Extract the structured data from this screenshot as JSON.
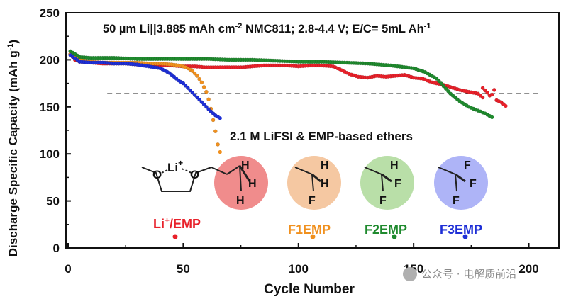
{
  "chart_data": {
    "type": "scatter",
    "title": "50 µm Li||3.885 mAh cm⁻² NMC811; 2.8-4.4 V; E/C= 5mL Ah⁻¹",
    "title_parts": {
      "pre": "50 µm Li||3.885 mAh cm",
      "sup1": "-2",
      "mid": " NMC811; 2.8-4.4 V; E/C= 5mL Ah",
      "sup2": "-1"
    },
    "xlabel": "Cycle Number",
    "ylabel_parts": {
      "pre": "Discharge Specific Capacity (mAh g",
      "sup": "-1",
      "post": ")"
    },
    "xlim": [
      0,
      210
    ],
    "ylim": [
      0,
      250
    ],
    "xticks": [
      0,
      50,
      100,
      150,
      200
    ],
    "yticks": [
      0,
      50,
      100,
      150,
      200,
      250
    ],
    "reference_line": {
      "y": 164,
      "x_start": 17,
      "x_end": 205,
      "style": "dashed"
    },
    "annotation": "2.1 M LiFSI & EMP-based ethers",
    "series": [
      {
        "name": "Li+/EMP",
        "color": "#e8212a",
        "points": [
          [
            1,
            206
          ],
          [
            3,
            200
          ],
          [
            5,
            198
          ],
          [
            10,
            197
          ],
          [
            15,
            196
          ],
          [
            20,
            196
          ],
          [
            25,
            196
          ],
          [
            30,
            195
          ],
          [
            35,
            195
          ],
          [
            40,
            194
          ],
          [
            45,
            194
          ],
          [
            50,
            193
          ],
          [
            55,
            193
          ],
          [
            60,
            192
          ],
          [
            65,
            192
          ],
          [
            70,
            192
          ],
          [
            75,
            192
          ],
          [
            80,
            193
          ],
          [
            85,
            194
          ],
          [
            90,
            194
          ],
          [
            95,
            194
          ],
          [
            100,
            193
          ],
          [
            105,
            194
          ],
          [
            110,
            194
          ],
          [
            115,
            193
          ],
          [
            118,
            190
          ],
          [
            122,
            185
          ],
          [
            126,
            182
          ],
          [
            130,
            181
          ],
          [
            134,
            183
          ],
          [
            138,
            182
          ],
          [
            142,
            183
          ],
          [
            146,
            184
          ],
          [
            150,
            181
          ],
          [
            154,
            180
          ],
          [
            158,
            176
          ],
          [
            162,
            174
          ],
          [
            166,
            171
          ],
          [
            170,
            168
          ],
          [
            174,
            166
          ],
          [
            178,
            164
          ],
          [
            180,
            160
          ],
          [
            182,
            165
          ],
          [
            184,
            163
          ],
          [
            186,
            157
          ],
          [
            188,
            155
          ],
          [
            190,
            151
          ],
          [
            180,
            170
          ],
          [
            183,
            162
          ],
          [
            185,
            168
          ]
        ]
      },
      {
        "name": "F1EMP",
        "color": "#f0901e",
        "points": [
          [
            1,
            206
          ],
          [
            5,
            200
          ],
          [
            10,
            198
          ],
          [
            15,
            197
          ],
          [
            20,
            197
          ],
          [
            25,
            197
          ],
          [
            30,
            197
          ],
          [
            35,
            196
          ],
          [
            40,
            196
          ],
          [
            45,
            195
          ],
          [
            48,
            194
          ],
          [
            50,
            193
          ],
          [
            52,
            191
          ],
          [
            54,
            188
          ],
          [
            56,
            183
          ],
          [
            58,
            176
          ],
          [
            60,
            166
          ],
          [
            61,
            158
          ],
          [
            62,
            148
          ],
          [
            63,
            136
          ],
          [
            64,
            124
          ],
          [
            65,
            110
          ],
          [
            66,
            102
          ]
        ]
      },
      {
        "name": "F2EMP",
        "color": "#1f8a2e",
        "points": [
          [
            1,
            209
          ],
          [
            5,
            203
          ],
          [
            10,
            202
          ],
          [
            20,
            202
          ],
          [
            30,
            201
          ],
          [
            40,
            201
          ],
          [
            50,
            201
          ],
          [
            60,
            201
          ],
          [
            70,
            200
          ],
          [
            80,
            200
          ],
          [
            90,
            199
          ],
          [
            100,
            198
          ],
          [
            110,
            198
          ],
          [
            120,
            197
          ],
          [
            130,
            196
          ],
          [
            140,
            194
          ],
          [
            150,
            191
          ],
          [
            155,
            187
          ],
          [
            160,
            180
          ],
          [
            163,
            172
          ],
          [
            166,
            164
          ],
          [
            170,
            156
          ],
          [
            174,
            150
          ],
          [
            178,
            146
          ],
          [
            181,
            143
          ],
          [
            184,
            139
          ]
        ]
      },
      {
        "name": "F3EMP",
        "color": "#1e2fd6",
        "points": [
          [
            1,
            205
          ],
          [
            5,
            198
          ],
          [
            10,
            197
          ],
          [
            15,
            197
          ],
          [
            20,
            196
          ],
          [
            25,
            196
          ],
          [
            30,
            195
          ],
          [
            35,
            193
          ],
          [
            40,
            191
          ],
          [
            44,
            186
          ],
          [
            46,
            182
          ],
          [
            48,
            178
          ],
          [
            50,
            175
          ],
          [
            52,
            170
          ],
          [
            54,
            165
          ],
          [
            56,
            160
          ],
          [
            58,
            155
          ],
          [
            60,
            150
          ],
          [
            62,
            145
          ],
          [
            64,
            141
          ],
          [
            66,
            138
          ]
        ]
      }
    ]
  },
  "structure": {
    "li_label": "Li",
    "li_charge": "+",
    "o_label": "O",
    "h_label": "H",
    "f_label": "F"
  },
  "legend": {
    "items": [
      {
        "label": "Li⁺/EMP",
        "label_pre": "Li",
        "label_sup": "+",
        "label_post": "/EMP",
        "color": "#e8212a",
        "circle_color": "#f08c8c"
      },
      {
        "label": "F1EMP",
        "color": "#f0901e",
        "circle_color": "#f5c8a2"
      },
      {
        "label": "F2EMP",
        "color": "#1f8a2e",
        "circle_color": "#b9dfa8"
      },
      {
        "label": "F3EMP",
        "color": "#1e2fd6",
        "circle_color": "#aeb4f7"
      }
    ]
  },
  "watermark": "公众号 · 电解质前沿"
}
